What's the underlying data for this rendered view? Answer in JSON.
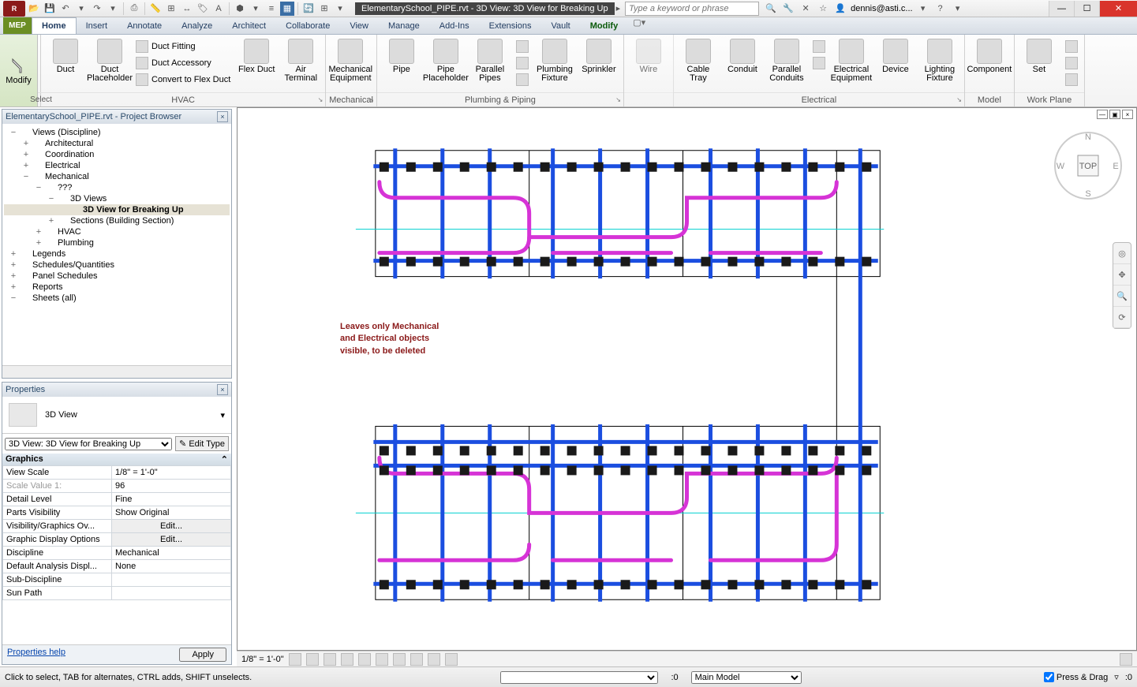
{
  "title": "ElementarySchool_PIPE.rvt - 3D View: 3D View for Breaking Up",
  "search_placeholder": "Type a keyword or phrase",
  "user": "dennis@asti.c...",
  "app_badge": "MEP",
  "menu": {
    "tabs": [
      "Home",
      "Insert",
      "Annotate",
      "Analyze",
      "Architect",
      "Collaborate",
      "View",
      "Manage",
      "Add-Ins",
      "Extensions",
      "Vault",
      "Modify"
    ],
    "active": "Home"
  },
  "ribbon": {
    "modify": "Modify",
    "groups": {
      "select": {
        "label": "Select",
        "items": []
      },
      "hvac": {
        "label": "HVAC",
        "large": [
          {
            "l": "Duct"
          },
          {
            "l": "Duct\nPlaceholder"
          }
        ],
        "small": [
          "Duct Fitting",
          "Duct Accessory",
          "Convert to Flex Duct"
        ],
        "large2": [
          {
            "l": "Flex\nDuct"
          },
          {
            "l": "Air\nTerminal"
          }
        ]
      },
      "mech": {
        "label": "Mechanical",
        "large": [
          {
            "l": "Mechanical\nEquipment"
          }
        ]
      },
      "plumb": {
        "label": "Plumbing & Piping",
        "large": [
          {
            "l": "Pipe"
          },
          {
            "l": "Pipe\nPlaceholder"
          },
          {
            "l": "Parallel\nPipes"
          },
          {
            "l": "Plumbing\nFixture"
          },
          {
            "l": "Sprinkler"
          }
        ]
      },
      "wire": {
        "label": "",
        "large": [
          {
            "l": "Wire"
          }
        ]
      },
      "elec": {
        "label": "Electrical",
        "large": [
          {
            "l": "Cable\nTray"
          },
          {
            "l": "Conduit"
          },
          {
            "l": "Parallel\nConduits"
          },
          {
            "l": "Electrical\nEquipment"
          },
          {
            "l": "Device"
          },
          {
            "l": "Lighting\nFixture"
          }
        ]
      },
      "model": {
        "label": "Model",
        "large": [
          {
            "l": "Component"
          }
        ]
      },
      "wp": {
        "label": "Work Plane",
        "large": [
          {
            "l": "Set"
          }
        ]
      }
    }
  },
  "browser": {
    "title": "ElementarySchool_PIPE.rvt - Project Browser",
    "tree": [
      {
        "d": 0,
        "tw": "−",
        "l": "Views (Discipline)"
      },
      {
        "d": 1,
        "tw": "+",
        "l": "Architectural"
      },
      {
        "d": 1,
        "tw": "+",
        "l": "Coordination"
      },
      {
        "d": 1,
        "tw": "+",
        "l": "Electrical"
      },
      {
        "d": 1,
        "tw": "−",
        "l": "Mechanical"
      },
      {
        "d": 2,
        "tw": "−",
        "l": "???"
      },
      {
        "d": 3,
        "tw": "−",
        "l": "3D Views"
      },
      {
        "d": 4,
        "tw": "",
        "l": "3D View for Breaking Up",
        "sel": true,
        "bold": true
      },
      {
        "d": 3,
        "tw": "+",
        "l": "Sections (Building Section)"
      },
      {
        "d": 2,
        "tw": "+",
        "l": "HVAC"
      },
      {
        "d": 2,
        "tw": "+",
        "l": "Plumbing"
      },
      {
        "d": 0,
        "tw": "+",
        "l": "Legends"
      },
      {
        "d": 0,
        "tw": "+",
        "l": "Schedules/Quantities"
      },
      {
        "d": 0,
        "tw": "+",
        "l": "Panel Schedules"
      },
      {
        "d": 0,
        "tw": "+",
        "l": "Reports"
      },
      {
        "d": 0,
        "tw": "−",
        "l": "Sheets (all)"
      }
    ]
  },
  "props": {
    "title": "Properties",
    "type": "3D View",
    "selector": "3D View: 3D View for Breaking Up",
    "edit_type": "Edit Type",
    "section": "Graphics",
    "rows": [
      {
        "k": "View Scale",
        "v": "1/8\" = 1'-0\""
      },
      {
        "k": "Scale Value   1:",
        "v": "96",
        "grey": true
      },
      {
        "k": "Detail Level",
        "v": "Fine"
      },
      {
        "k": "Parts Visibility",
        "v": "Show Original"
      },
      {
        "k": "Visibility/Graphics Ov...",
        "v": "Edit...",
        "btn": true
      },
      {
        "k": "Graphic Display Options",
        "v": "Edit...",
        "btn": true
      },
      {
        "k": "Discipline",
        "v": "Mechanical"
      },
      {
        "k": "Default Analysis Displ...",
        "v": "None"
      },
      {
        "k": "Sub-Discipline",
        "v": ""
      },
      {
        "k": "Sun Path",
        "v": ""
      }
    ],
    "help": "Properties help",
    "apply": "Apply"
  },
  "viewbar": {
    "scale": "1/8\" = 1'-0\""
  },
  "status": {
    "hint": "Click to select, TAB for alternates, CTRL adds, SHIFT unselects.",
    "zero1": ":0",
    "main_model": "Main Model",
    "press": "Press & Drag",
    "filter": ":0"
  },
  "annotation": {
    "l1": "Leaves only Mechanical",
    "l2": "and Electrical objects",
    "l3": "visible, to be deleted"
  },
  "colors": {
    "pipe_blue": "#1b4ee0",
    "pipe_mag": "#d633d6",
    "pipe_cyan": "#00d0d0",
    "fixture": "#1a1a1a"
  },
  "viewcube": {
    "top": "TOP",
    "n": "N",
    "s": "S",
    "e": "E",
    "w": "W"
  }
}
